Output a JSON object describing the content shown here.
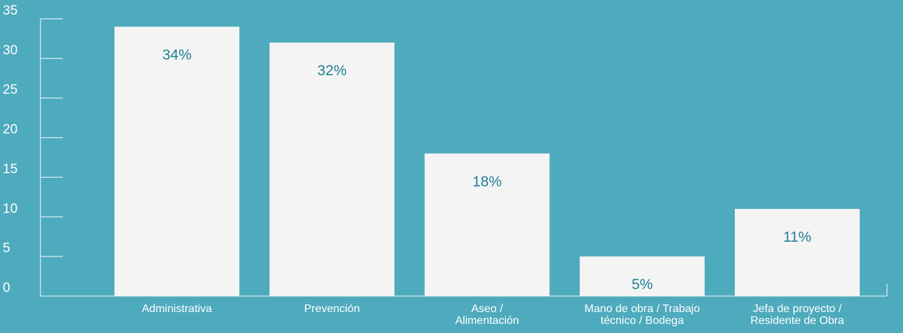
{
  "chart_data": {
    "type": "bar",
    "categories": [
      [
        "Administrativa"
      ],
      [
        "Prevención"
      ],
      [
        "Aseo /",
        "Alimentación"
      ],
      [
        "Mano de obra / Trabajo",
        "técnico / Bodega"
      ],
      [
        "Jefa de proyecto /",
        "Residente de Obra"
      ]
    ],
    "values": [
      34,
      32,
      18,
      5,
      11
    ],
    "data_labels": [
      "34%",
      "32%",
      "18%",
      "5%",
      "11%"
    ],
    "title": "",
    "xlabel": "",
    "ylabel": "",
    "ylim": [
      0,
      35
    ],
    "yticks": [
      "0",
      "5",
      "10",
      "15",
      "20",
      "25",
      "30",
      "35"
    ],
    "legend": "none",
    "grid": false
  },
  "colors": {
    "background": "#4eaabd",
    "bar": "#f4f4f4",
    "axis": "#ffffff",
    "label": "#1f7f97"
  }
}
